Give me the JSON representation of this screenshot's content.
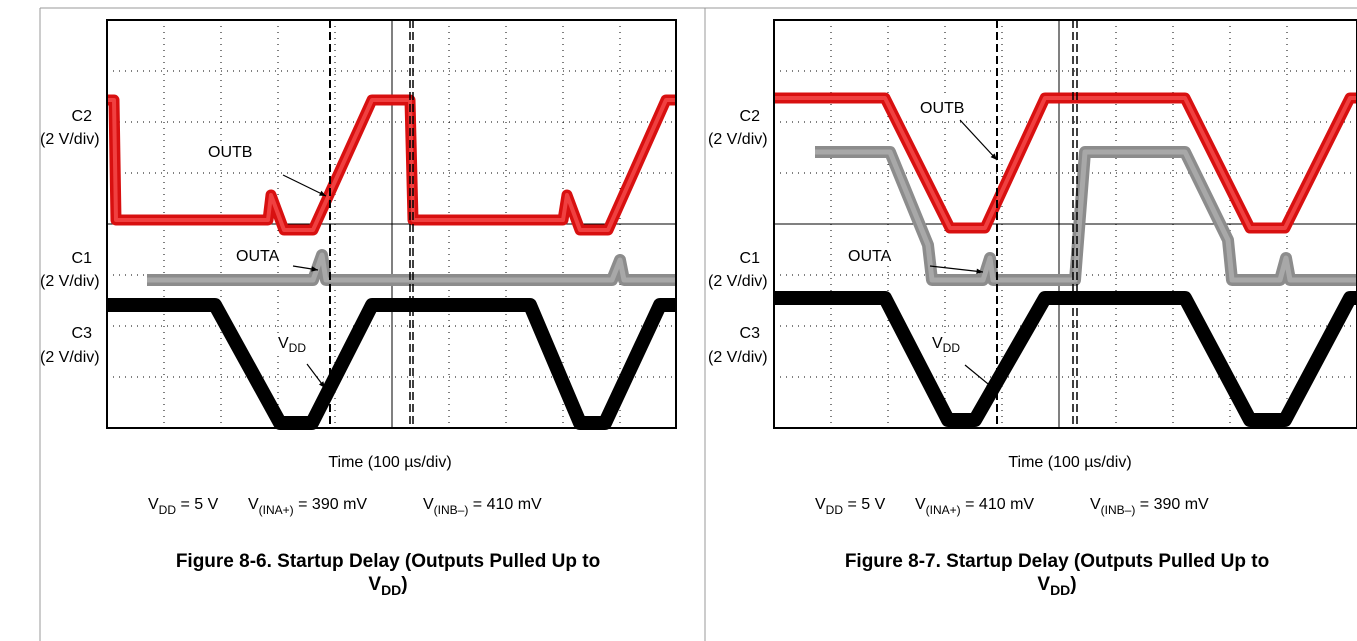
{
  "figures": [
    {
      "channels": [
        {
          "name": "C2",
          "scale": "(2 V/div)"
        },
        {
          "name": "C1",
          "scale": "(2 V/div)"
        },
        {
          "name": "C3",
          "scale": "(2 V/div)"
        }
      ],
      "annotations": {
        "outb": "OUTB",
        "outa": "OUTA",
        "vdd": {
          "main": "V",
          "sub": "DD"
        }
      },
      "x_label": "Time (100 µs/div)",
      "conditions": [
        {
          "main": "V",
          "sub": "DD",
          "rest": " = 5 V"
        },
        {
          "main": "V",
          "sub": "(INA+)",
          "rest": " = 390 mV"
        },
        {
          "main": "V",
          "sub": "(INB–)",
          "rest": " = 410 mV"
        }
      ],
      "caption": {
        "line1": "Figure 8-6. Startup Delay (Outputs Pulled Up to",
        "main": "V",
        "sub": "DD",
        "end": ")"
      }
    },
    {
      "channels": [
        {
          "name": "C2",
          "scale": "(2 V/div)"
        },
        {
          "name": "C1",
          "scale": "(2 V/div)"
        },
        {
          "name": "C3",
          "scale": "(2 V/div)"
        }
      ],
      "annotations": {
        "outb": "OUTB",
        "outa": "OUTA",
        "vdd": {
          "main": "V",
          "sub": "DD"
        }
      },
      "x_label": "Time (100 µs/div)",
      "conditions": [
        {
          "main": "V",
          "sub": "DD",
          "rest": " = 5 V"
        },
        {
          "main": "V",
          "sub": "(INA+)",
          "rest": " = 410 mV"
        },
        {
          "main": "V",
          "sub": "(INB–)",
          "rest": " = 390 mV"
        }
      ],
      "caption": {
        "line1": "Figure 8-7. Startup Delay (Outputs Pulled Up to",
        "main": "V",
        "sub": "DD",
        "end": ")"
      }
    }
  ]
}
